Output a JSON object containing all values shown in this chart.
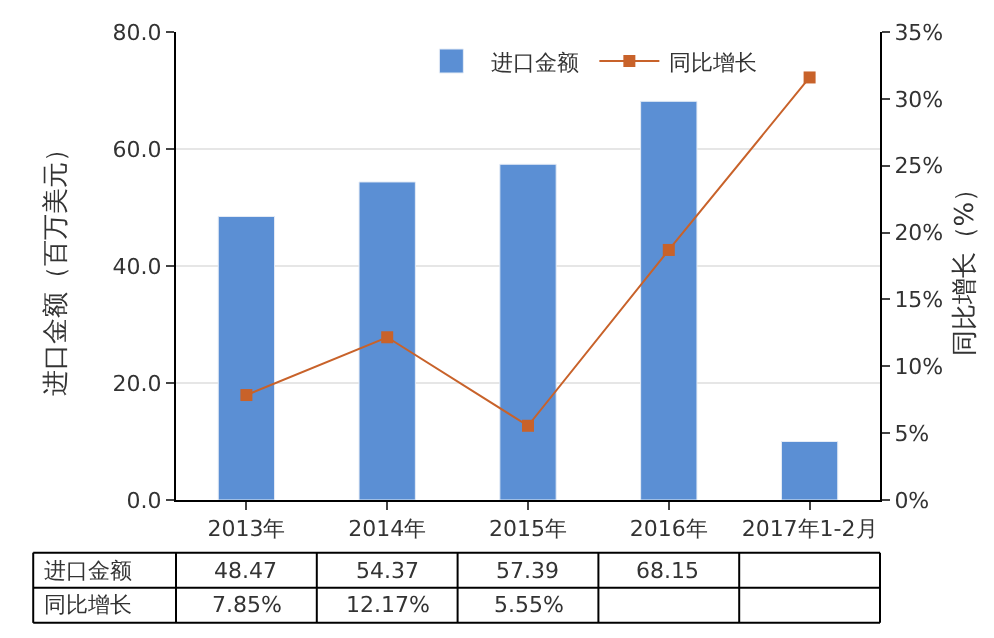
{
  "chart_data": {
    "type": "bar",
    "categories": [
      "2013年",
      "2014年",
      "2015年",
      "2016年",
      "2017年1-2月"
    ],
    "ylabel": "进口金额（百万美元）",
    "y2label": "同比增长（%）",
    "ylim": [
      0,
      80
    ],
    "yticks": [
      {
        "value": 0,
        "label": "0.0"
      },
      {
        "value": 20,
        "label": "20.0"
      },
      {
        "value": 40,
        "label": "40.0"
      },
      {
        "value": 60,
        "label": "60.0"
      },
      {
        "value": 80,
        "label": "80.0"
      }
    ],
    "y2lim": [
      0,
      35
    ],
    "y2ticks": [
      {
        "value": 0,
        "label": "0%"
      },
      {
        "value": 5,
        "label": "5%"
      },
      {
        "value": 10,
        "label": "10%"
      },
      {
        "value": 15,
        "label": "15%"
      },
      {
        "value": 20,
        "label": "20%"
      },
      {
        "value": 25,
        "label": "25%"
      },
      {
        "value": 30,
        "label": "30%"
      },
      {
        "value": 35,
        "label": "35%"
      }
    ],
    "grid": "y",
    "legend": "top right",
    "series": [
      {
        "name": "进口金额",
        "color": "#5b8fd4",
        "values": [
          48.47,
          54.37,
          57.39,
          68.15,
          10.0
        ],
        "value_labels": [
          "48.47",
          "54.37",
          "57.39",
          "68.15",
          null
        ]
      },
      {
        "name": "同比增长",
        "type": "line",
        "axis": "y2",
        "color": "#c8622a",
        "marker": "square",
        "values": [
          7.85,
          12.17,
          5.55,
          18.7,
          31.6
        ],
        "value_labels": [
          "7.85%",
          "12.17%",
          "5.55%",
          null,
          null
        ]
      }
    ]
  }
}
